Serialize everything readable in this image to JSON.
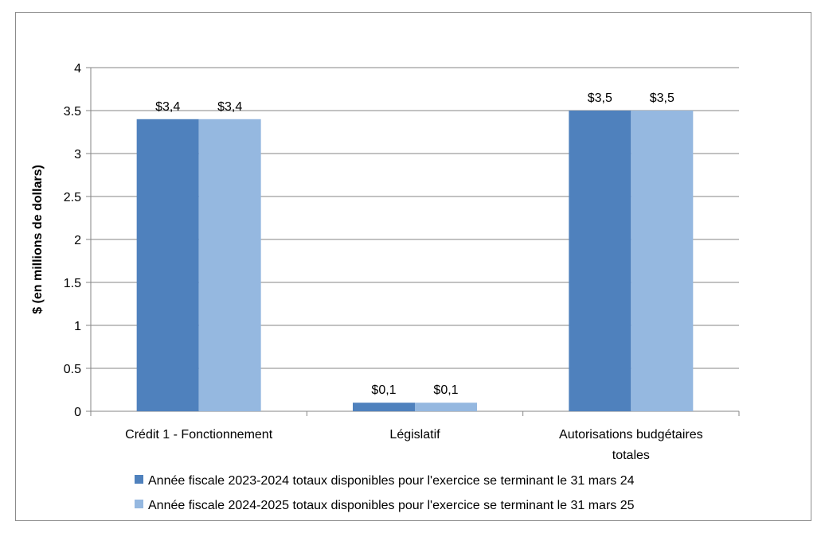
{
  "chart_data": {
    "type": "bar",
    "ylabel": "$ (en millions de dollars)",
    "ylim": [
      0,
      4
    ],
    "yticks": [
      "0",
      "0.5",
      "1",
      "1.5",
      "2",
      "2.5",
      "3",
      "3.5",
      "4"
    ],
    "ytick_values": [
      0,
      0.5,
      1,
      1.5,
      2,
      2.5,
      3,
      3.5,
      4
    ],
    "grid": true,
    "legend_position": "bottom",
    "categories": [
      [
        "Crédit 1 - Fonctionnement"
      ],
      [
        "Législatif"
      ],
      [
        "Autorisations budgétaires",
        "totales"
      ]
    ],
    "series": [
      {
        "name": "Année fiscale 2023-2024 totaux disponibles pour l'exercice se terminant le 31 mars 24",
        "color": "#4f81bd",
        "values": [
          3.4,
          0.1,
          3.5
        ],
        "labels": [
          "$3,4",
          "$0,1",
          "$3,5"
        ]
      },
      {
        "name": "Année fiscale 2024-2025 totaux disponibles pour l'exercice se terminant le 31 mars 25",
        "color": "#95b8e0",
        "values": [
          3.4,
          0.1,
          3.5
        ],
        "labels": [
          "$3,4",
          "$0,1",
          "$3,5"
        ]
      }
    ]
  }
}
